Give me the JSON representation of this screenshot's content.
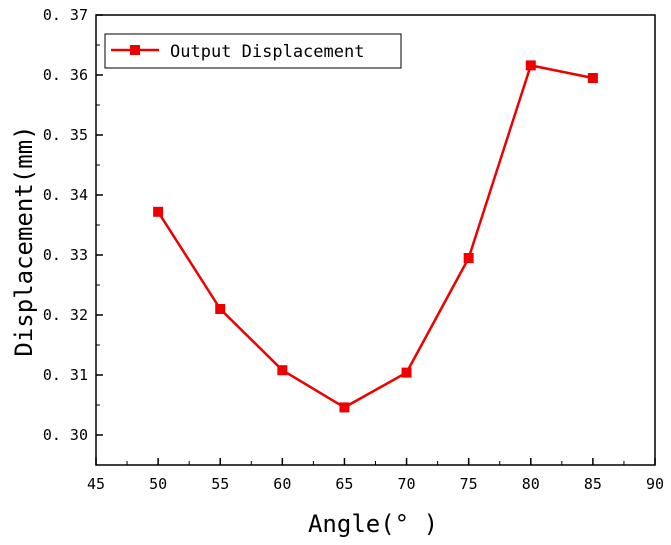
{
  "chart_data": {
    "type": "line",
    "title": "",
    "xlabel": "Angle(° )",
    "ylabel": "Displacement(mm)",
    "xlim": [
      45,
      90
    ],
    "ylim": [
      0.295,
      0.37
    ],
    "xticks": [
      45,
      50,
      55,
      60,
      65,
      70,
      75,
      80,
      85,
      90
    ],
    "yticks": [
      0.3,
      0.31,
      0.32,
      0.33,
      0.34,
      0.35,
      0.36,
      0.37
    ],
    "xtick_labels": [
      "45",
      "50",
      "55",
      "60",
      "65",
      "70",
      "75",
      "80",
      "85",
      "90"
    ],
    "ytick_labels": [
      "0. 30",
      "0. 31",
      "0. 32",
      "0. 33",
      "0. 34",
      "0. 35",
      "0. 36",
      "0. 37"
    ],
    "grid": false,
    "legend_position": "top-left",
    "series": [
      {
        "name": "Output Displacement",
        "color": "#ee0000",
        "marker": "square",
        "x": [
          50,
          55,
          60,
          65,
          70,
          75,
          80,
          85
        ],
        "values": [
          0.3372,
          0.321,
          0.3108,
          0.3046,
          0.3104,
          0.3295,
          0.3616,
          0.3595
        ]
      }
    ]
  }
}
